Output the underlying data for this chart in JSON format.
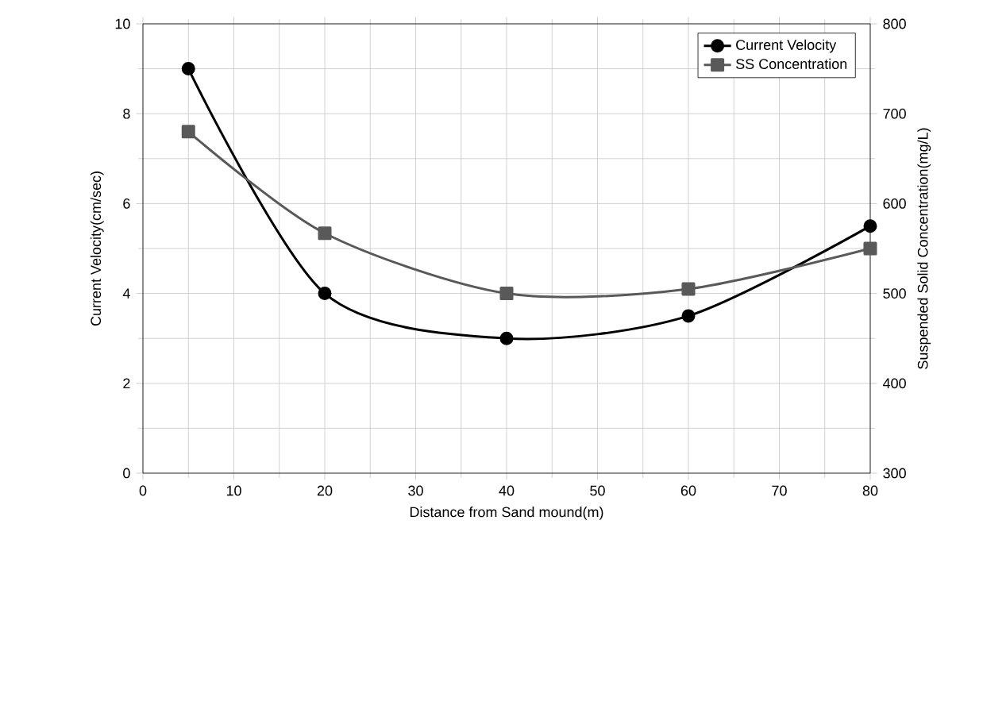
{
  "chart_data": {
    "type": "line",
    "xlabel": "Distance from  Sand mound(m)",
    "ylabel": "Current Velocity(cm/sec)",
    "y2label": "Suspended Solid Concentration(mg/L)",
    "x": [
      5,
      20,
      40,
      60,
      80
    ],
    "series": [
      {
        "name": "Current Velocity",
        "color": "#000000",
        "marker": "circle",
        "values": [
          9,
          4,
          3,
          3.5,
          5.5
        ]
      },
      {
        "name": "SS Concentration",
        "color": "#595959",
        "marker": "square",
        "axis": "y2",
        "values": [
          680,
          567,
          500,
          505,
          550
        ]
      }
    ],
    "xlim": [
      0,
      80
    ],
    "xticks": [
      0,
      10,
      20,
      30,
      40,
      50,
      60,
      70,
      80
    ],
    "ylim": [
      0,
      10
    ],
    "yticks": [
      0,
      2,
      4,
      6,
      8,
      10
    ],
    "y2lim": [
      300,
      800
    ],
    "y2ticks": [
      300,
      400,
      500,
      600,
      700,
      800
    ],
    "grid": true,
    "legend": "top right"
  }
}
